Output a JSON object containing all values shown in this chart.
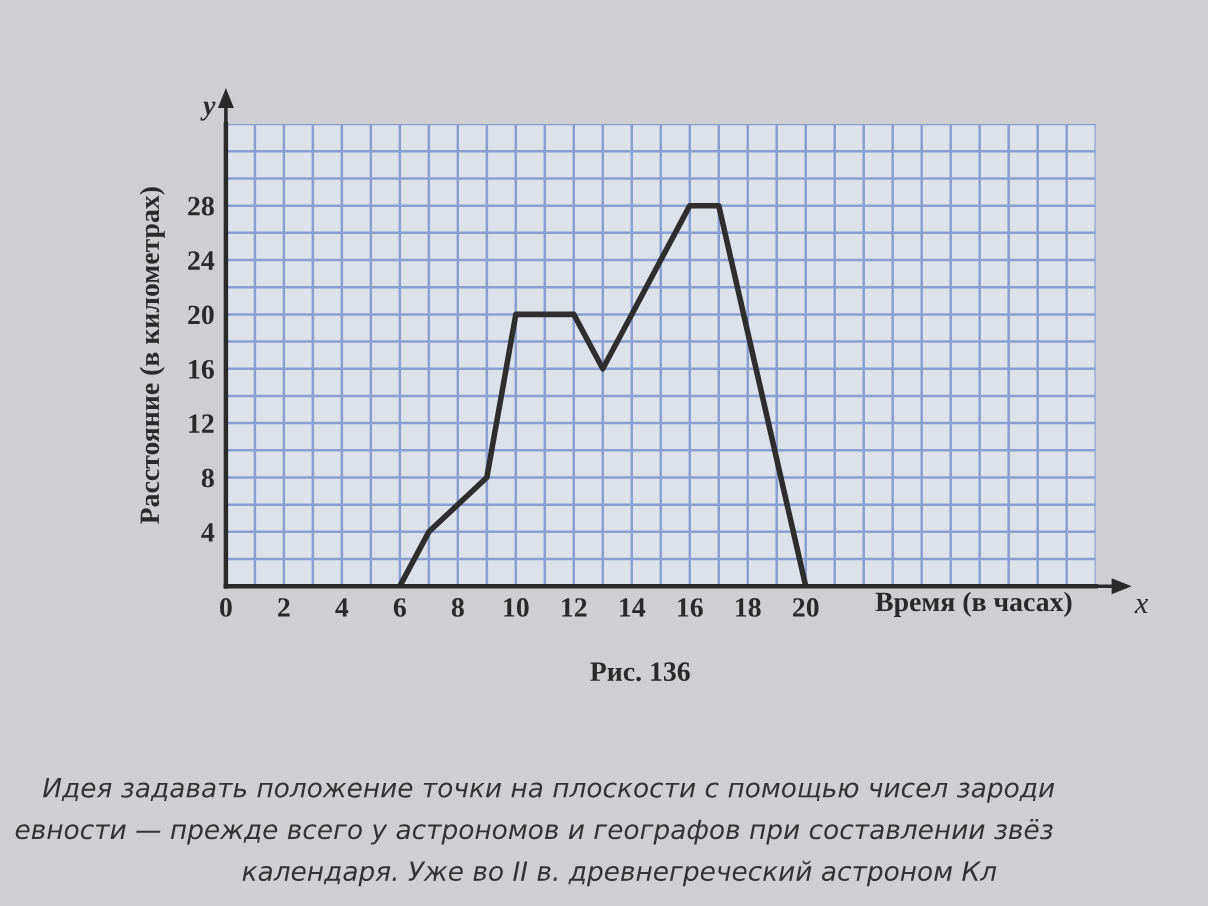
{
  "chart_data": {
    "type": "line",
    "x": [
      6,
      7,
      9,
      10,
      12,
      13,
      16,
      17,
      20
    ],
    "series": [
      {
        "color": "#2e2e2e",
        "values": [
          0,
          4,
          8,
          20,
          20,
          16,
          28,
          28,
          0
        ]
      }
    ],
    "xlabel": "Время (в часах)",
    "ylabel": "Расстояние (в километрах)",
    "xlim": [
      0,
      30
    ],
    "ylim": [
      0,
      34
    ],
    "xticks": [
      0,
      {
        "value": 1,
        "label": null
      },
      2,
      {
        "value": 3,
        "label": null
      },
      4,
      {
        "value": 5,
        "label": null
      },
      6,
      {
        "value": 7,
        "label": null
      },
      8,
      {
        "value": 9,
        "label": null
      },
      10,
      {
        "value": 11,
        "label": null
      },
      12,
      {
        "value": 13,
        "label": null
      },
      14,
      {
        "value": 15,
        "label": null
      },
      16,
      {
        "value": 17,
        "label": null
      },
      18,
      {
        "value": 19,
        "label": null
      },
      20,
      {
        "value": 21,
        "label": null
      },
      {
        "value": 22,
        "label": null
      },
      {
        "value": 23,
        "label": null
      },
      {
        "value": 24,
        "label": null
      },
      {
        "value": 25,
        "label": null
      },
      {
        "value": 26,
        "label": null
      },
      {
        "value": 27,
        "label": null
      },
      {
        "value": 28,
        "label": null
      },
      {
        "value": 29,
        "label": null
      },
      {
        "value": 30,
        "label": null
      }
    ],
    "yticks": [
      {
        "value": 2,
        "label": null
      },
      4,
      {
        "value": 6,
        "label": null
      },
      8,
      {
        "value": 10,
        "label": null
      },
      12,
      {
        "value": 14,
        "label": null
      },
      16,
      {
        "value": 18,
        "label": null
      },
      20,
      {
        "value": 22,
        "label": null
      },
      24,
      {
        "value": 26,
        "label": null
      },
      28,
      {
        "value": 30,
        "label": null
      },
      {
        "value": 32,
        "label": null
      },
      {
        "value": 34,
        "label": null
      }
    ],
    "grid": true,
    "annotations": [
      "Рис. 136",
      "x",
      "y",
      "Идея задавать положение точки на плоскости с помощью чисел зароди",
      "евности — прежде всего у астрономов и географов при составлении звёз",
      "календаря. Уже во II в. древнегреческий астроном Кл"
    ]
  }
}
